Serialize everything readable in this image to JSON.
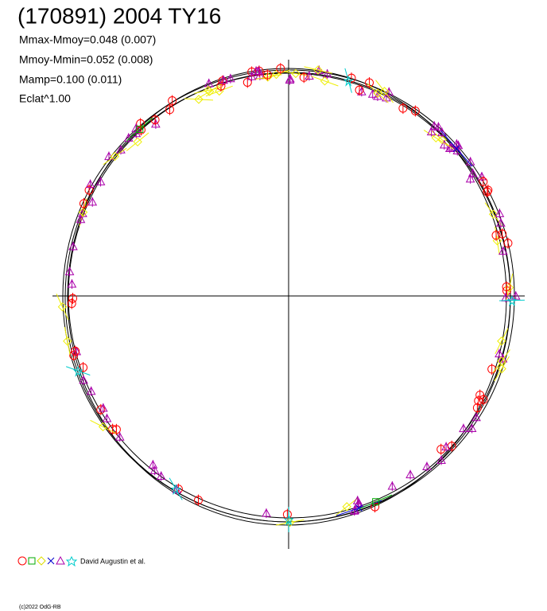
{
  "header": {
    "title": "(170891) 2004 TY16"
  },
  "stats": [
    "Mmax-Mmoy=0.048 (0.007)",
    "Mmoy-Mmin=0.052 (0.008)",
    "Mamp=0.100 (0.011)",
    "Eclat^1.00"
  ],
  "legend": {
    "label": "David Augustin et al."
  },
  "footer": {
    "copyright": "(c)2022 OdG-RB"
  }
}
